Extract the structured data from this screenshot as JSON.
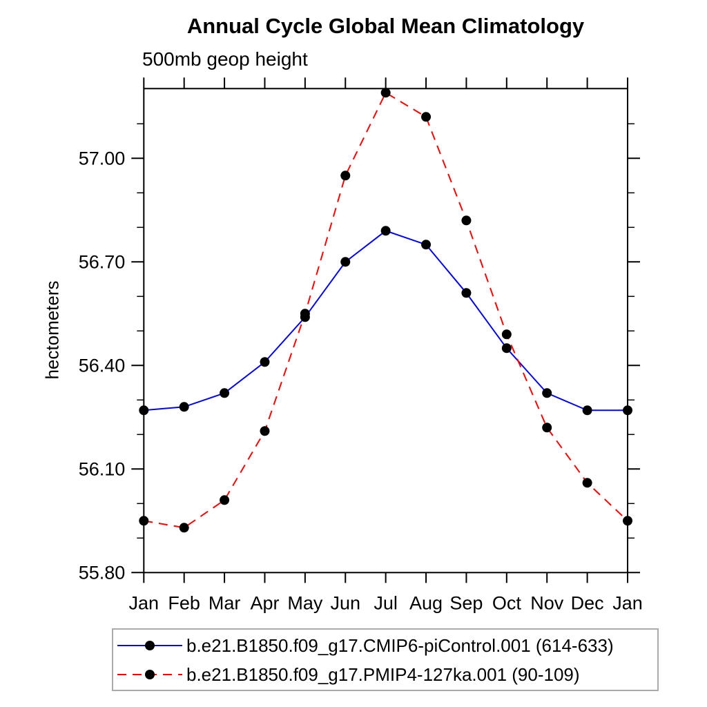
{
  "chart_data": {
    "type": "line",
    "title": "Annual Cycle Global Mean Climatology",
    "subtitle": "500mb geop height",
    "ylabel": "hectometers",
    "xlabel": "",
    "categories": [
      "Jan",
      "Feb",
      "Mar",
      "Apr",
      "May",
      "Jun",
      "Jul",
      "Aug",
      "Sep",
      "Oct",
      "Nov",
      "Dec",
      "Jan"
    ],
    "series": [
      {
        "name": "b.e21.B1850.f09_g17.CMIP6-piControl.001 (614-633)",
        "color": "#0000ff",
        "line_style": "solid",
        "marker": "filled-black-circle",
        "values": [
          56.27,
          56.28,
          56.32,
          56.41,
          56.54,
          56.7,
          56.79,
          56.75,
          56.61,
          56.45,
          56.32,
          56.27,
          56.27
        ]
      },
      {
        "name": "b.e21.B1850.f09_g17.PMIP4-127ka.001 (90-109)",
        "color": "#ff0000",
        "line_style": "dashed",
        "marker": "filled-black-circle",
        "values": [
          55.95,
          55.93,
          56.01,
          56.21,
          56.55,
          56.95,
          57.19,
          57.12,
          56.82,
          56.49,
          56.22,
          56.06,
          55.95
        ]
      }
    ],
    "ylim": [
      55.8,
      57.2
    ],
    "yticks_major": {
      "values": [
        55.8,
        56.1,
        56.4,
        56.7,
        57.0
      ],
      "labels": [
        "55.80",
        "56.10",
        "56.40",
        "56.70",
        "57.00"
      ]
    },
    "yticks_minor_step": 0.1,
    "grid": false,
    "legend_position": "bottom",
    "marker_color": "#000000",
    "axis_color": "#000000"
  }
}
